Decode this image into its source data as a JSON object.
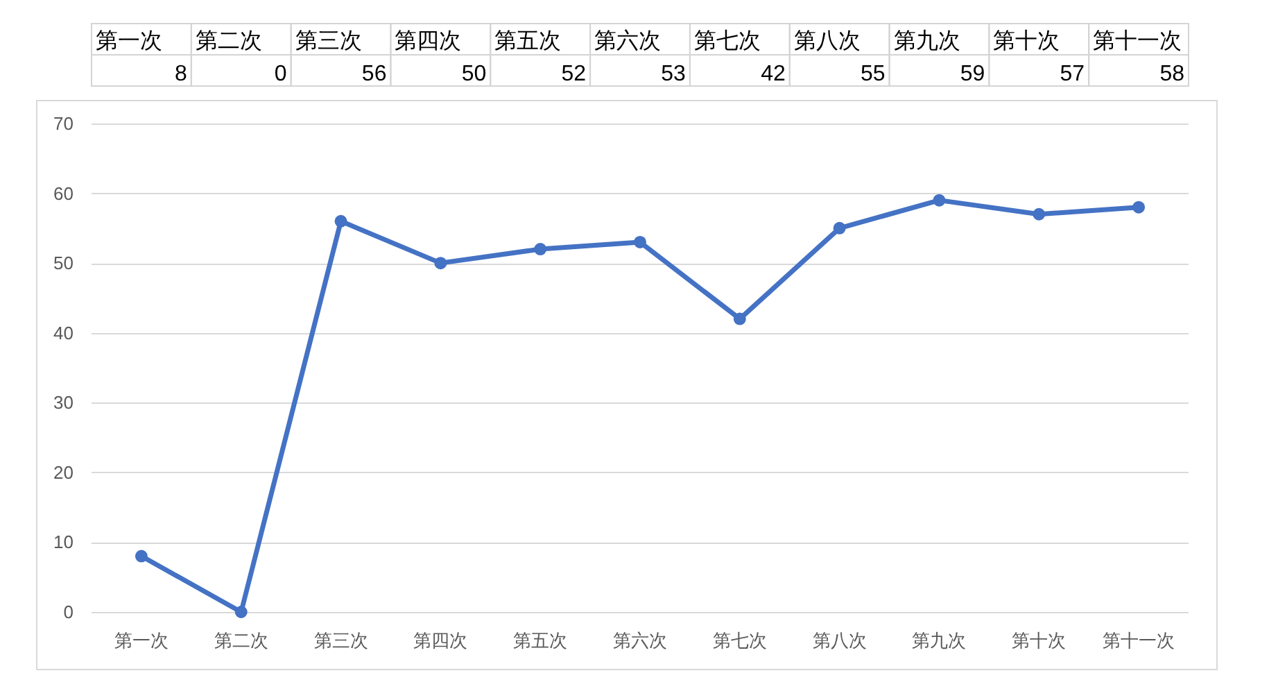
{
  "chart_data": {
    "type": "line",
    "categories": [
      "第一次",
      "第二次",
      "第三次",
      "第四次",
      "第五次",
      "第六次",
      "第七次",
      "第八次",
      "第九次",
      "第十次",
      "第十一次"
    ],
    "values": [
      8,
      0,
      56,
      50,
      52,
      53,
      42,
      55,
      59,
      57,
      58
    ],
    "color": "#4472c4",
    "marker": "circle",
    "line_style": "solid",
    "ylim": [
      0,
      70
    ],
    "yticks": [
      0,
      10,
      20,
      30,
      40,
      50,
      60,
      70
    ],
    "grid": "y",
    "data_labels": true
  }
}
